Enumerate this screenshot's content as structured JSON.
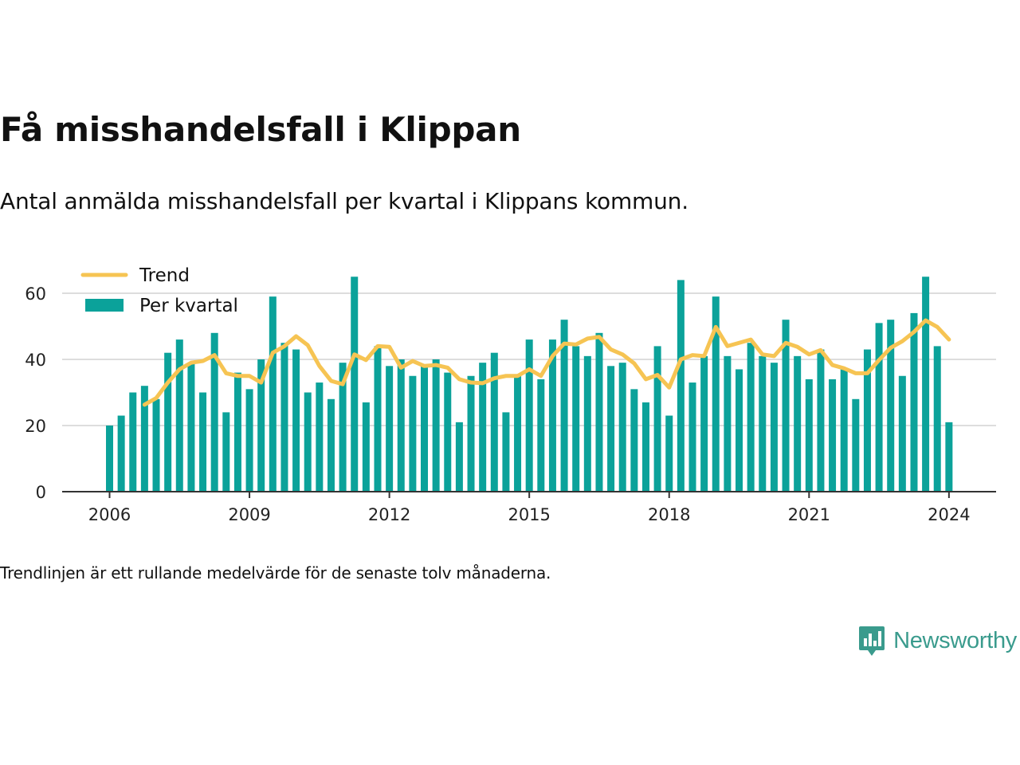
{
  "header": {
    "title": "Få misshandelsfall i Klippan",
    "subtitle": "Antal anmälda misshandelsfall per kvartal i Klippans kommun."
  },
  "footer": {
    "note": "Trendlinjen är ett rullande medelvärde för de senaste tolv månaderna.",
    "brand": "Newsworthy",
    "brand_icon": "newsworthy-logo-icon"
  },
  "colors": {
    "bar": "#0ba29a",
    "trend": "#f6c453",
    "grid": "#dddddd",
    "axis": "#333333",
    "brand": "#3a9b8d"
  },
  "chart_data": {
    "type": "bar",
    "xlabel": "",
    "ylabel": "",
    "ylim": [
      0,
      70
    ],
    "yticks": [
      "0",
      "20",
      "40",
      "60"
    ],
    "xticks": [
      "2006",
      "2009",
      "2012",
      "2015",
      "2018",
      "2021",
      "2024"
    ],
    "grid": true,
    "legend_position": "top-left",
    "x_start_quarter": "2006-Q1",
    "series": [
      {
        "name": "Per kvartal",
        "type": "bar",
        "values": [
          20,
          23,
          30,
          32,
          28,
          42,
          46,
          39,
          30,
          48,
          24,
          36,
          31,
          40,
          59,
          45,
          43,
          30,
          33,
          28,
          39,
          65,
          27,
          44,
          38,
          40,
          35,
          38,
          40,
          36,
          21,
          35,
          39,
          42,
          24,
          35,
          46,
          34,
          46,
          52,
          44,
          41,
          48,
          38,
          39,
          31,
          27,
          44,
          23,
          64,
          33,
          41,
          59,
          41,
          37,
          45,
          41,
          39,
          52,
          41,
          34,
          43,
          34,
          37,
          28,
          43,
          51,
          52,
          35,
          54,
          65,
          44,
          21
        ]
      },
      {
        "name": "Trend",
        "type": "line",
        "start_index": 3,
        "values": [
          26.3,
          28.3,
          33,
          37,
          39,
          39.5,
          41.3,
          35.8,
          35,
          35,
          33,
          42,
          44,
          47,
          44.3,
          38,
          33.5,
          32.5,
          41.5,
          39.8,
          44,
          43.8,
          37.5,
          39.5,
          38,
          38.3,
          37.5,
          34,
          33,
          32.8,
          34.3,
          35,
          35,
          37,
          35,
          41,
          44.8,
          44.5,
          46.3,
          46.8,
          43,
          41.5,
          38.8,
          34,
          35.3,
          31.5,
          40,
          41.3,
          41,
          49.8,
          44,
          45,
          46,
          41.5,
          41,
          45,
          43.8,
          41.5,
          42.8,
          38.3,
          37.3,
          35.8,
          35.8,
          39.8,
          43.5,
          45.5,
          48.3,
          51.8,
          49.8,
          46
        ]
      }
    ]
  }
}
